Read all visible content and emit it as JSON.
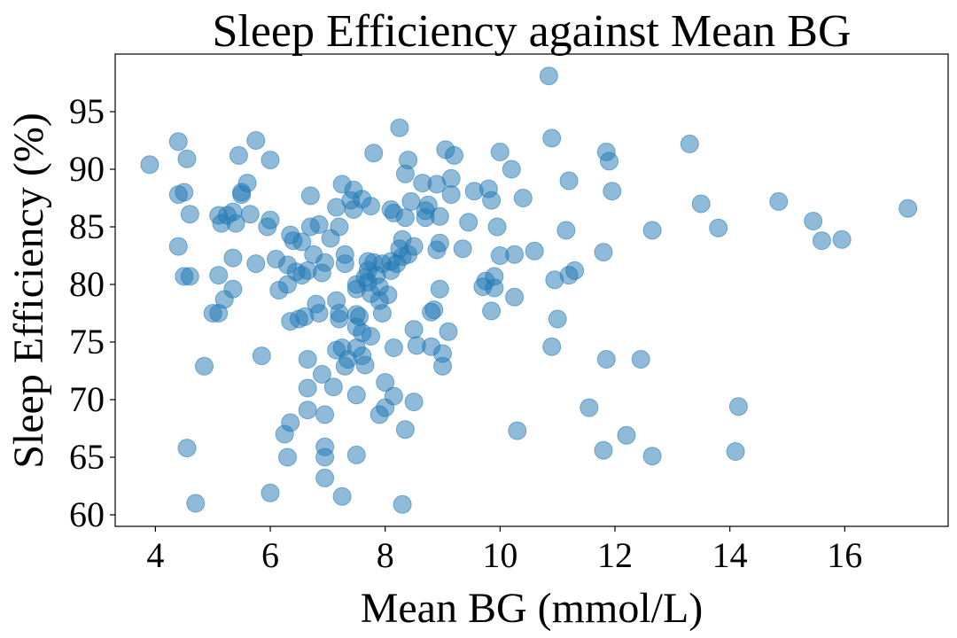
{
  "chart_data": {
    "type": "scatter",
    "title": "Sleep Efficiency against Mean BG",
    "xlabel": "Mean BG (mmol/L)",
    "ylabel": "Sleep Efficiency (%)",
    "xlim": [
      3.3,
      17.8
    ],
    "ylim": [
      59,
      100
    ],
    "xticks": [
      4,
      6,
      8,
      10,
      12,
      14,
      16
    ],
    "yticks": [
      60,
      65,
      70,
      75,
      80,
      85,
      90,
      95
    ],
    "grid": false,
    "legend": "none",
    "marker_color": "#1f77b4",
    "marker_alpha": 0.5,
    "series": [
      {
        "points": [
          [
            3.9,
            90.4
          ],
          [
            4.4,
            92.4
          ],
          [
            4.4,
            87.8
          ],
          [
            4.5,
            88.0
          ],
          [
            4.4,
            83.3
          ],
          [
            4.5,
            80.7
          ],
          [
            4.6,
            80.7
          ],
          [
            4.55,
            90.9
          ],
          [
            4.6,
            86.1
          ],
          [
            4.55,
            65.8
          ],
          [
            4.7,
            61.0
          ],
          [
            4.85,
            72.9
          ],
          [
            5.0,
            77.5
          ],
          [
            5.1,
            77.5
          ],
          [
            5.1,
            80.8
          ],
          [
            5.1,
            86.0
          ],
          [
            5.15,
            85.3
          ],
          [
            5.2,
            78.7
          ],
          [
            5.25,
            86.0
          ],
          [
            5.35,
            86.3
          ],
          [
            5.35,
            82.3
          ],
          [
            5.35,
            79.6
          ],
          [
            5.4,
            85.3
          ],
          [
            5.45,
            91.2
          ],
          [
            5.5,
            87.8
          ],
          [
            5.5,
            88.0
          ],
          [
            5.6,
            88.8
          ],
          [
            5.65,
            86.1
          ],
          [
            5.75,
            81.8
          ],
          [
            5.75,
            92.5
          ],
          [
            5.85,
            73.8
          ],
          [
            5.95,
            85.0
          ],
          [
            6.0,
            85.6
          ],
          [
            6.0,
            90.8
          ],
          [
            6.0,
            61.9
          ],
          [
            6.1,
            82.2
          ],
          [
            6.15,
            79.5
          ],
          [
            6.25,
            67.0
          ],
          [
            6.3,
            65.0
          ],
          [
            6.3,
            81.7
          ],
          [
            6.3,
            80.0
          ],
          [
            6.35,
            68.0
          ],
          [
            6.35,
            84.3
          ],
          [
            6.35,
            76.8
          ],
          [
            6.4,
            83.8
          ],
          [
            6.45,
            81.1
          ],
          [
            6.5,
            77.0
          ],
          [
            6.55,
            83.7
          ],
          [
            6.55,
            80.8
          ],
          [
            6.6,
            77.2
          ],
          [
            6.65,
            81.2
          ],
          [
            6.65,
            69.1
          ],
          [
            6.65,
            71.0
          ],
          [
            6.65,
            73.5
          ],
          [
            6.7,
            87.7
          ],
          [
            6.7,
            85.0
          ],
          [
            6.75,
            82.6
          ],
          [
            6.8,
            78.3
          ],
          [
            6.85,
            77.5
          ],
          [
            6.85,
            85.2
          ],
          [
            6.9,
            81.0
          ],
          [
            6.9,
            72.2
          ],
          [
            6.95,
            68.7
          ],
          [
            6.95,
            65.0
          ],
          [
            6.95,
            65.9
          ],
          [
            6.95,
            63.2
          ],
          [
            6.95,
            81.9
          ],
          [
            7.05,
            84.0
          ],
          [
            7.1,
            71.1
          ],
          [
            7.15,
            78.6
          ],
          [
            7.15,
            74.3
          ],
          [
            7.15,
            86.7
          ],
          [
            7.2,
            77.5
          ],
          [
            7.2,
            77.0
          ],
          [
            7.2,
            85.0
          ],
          [
            7.25,
            88.7
          ],
          [
            7.25,
            74.5
          ],
          [
            7.25,
            61.6
          ],
          [
            7.3,
            82.6
          ],
          [
            7.3,
            81.8
          ],
          [
            7.3,
            72.9
          ],
          [
            7.35,
            73.5
          ],
          [
            7.4,
            87.3
          ],
          [
            7.45,
            88.2
          ],
          [
            7.45,
            86.5
          ],
          [
            7.5,
            77.4
          ],
          [
            7.5,
            80.0
          ],
          [
            7.5,
            79.6
          ],
          [
            7.5,
            76.3
          ],
          [
            7.5,
            74.5
          ],
          [
            7.5,
            65.2
          ],
          [
            7.5,
            70.4
          ],
          [
            7.55,
            77.2
          ],
          [
            7.6,
            87.4
          ],
          [
            7.6,
            75.8
          ],
          [
            7.6,
            73.8
          ],
          [
            7.65,
            73.0
          ],
          [
            7.65,
            80.6
          ],
          [
            7.7,
            82.0
          ],
          [
            7.7,
            80.2
          ],
          [
            7.7,
            81.2
          ],
          [
            7.75,
            86.8
          ],
          [
            7.75,
            79.2
          ],
          [
            7.75,
            75.5
          ],
          [
            7.8,
            91.4
          ],
          [
            7.8,
            81.9
          ],
          [
            7.85,
            80.8
          ],
          [
            7.9,
            79.8
          ],
          [
            7.9,
            78.6
          ],
          [
            7.9,
            68.7
          ],
          [
            7.95,
            77.5
          ],
          [
            7.95,
            81.8
          ],
          [
            8.0,
            71.5
          ],
          [
            8.0,
            69.3
          ],
          [
            8.05,
            79.1
          ],
          [
            8.1,
            81.2
          ],
          [
            8.1,
            82.0
          ],
          [
            8.1,
            86.5
          ],
          [
            8.15,
            86.2
          ],
          [
            8.15,
            74.5
          ],
          [
            8.15,
            70.3
          ],
          [
            8.2,
            81.8
          ],
          [
            8.25,
            93.6
          ],
          [
            8.25,
            83.1
          ],
          [
            8.3,
            82.4
          ],
          [
            8.3,
            83.9
          ],
          [
            8.3,
            60.9
          ],
          [
            8.35,
            85.8
          ],
          [
            8.35,
            89.6
          ],
          [
            8.35,
            67.4
          ],
          [
            8.4,
            82.6
          ],
          [
            8.4,
            90.8
          ],
          [
            8.45,
            87.2
          ],
          [
            8.5,
            76.1
          ],
          [
            8.5,
            69.8
          ],
          [
            8.5,
            83.3
          ],
          [
            8.55,
            74.7
          ],
          [
            8.65,
            88.8
          ],
          [
            8.7,
            86.4
          ],
          [
            8.7,
            85.8
          ],
          [
            8.75,
            86.9
          ],
          [
            8.8,
            77.6
          ],
          [
            8.8,
            74.6
          ],
          [
            8.85,
            77.8
          ],
          [
            8.9,
            83.0
          ],
          [
            8.9,
            88.7
          ],
          [
            8.95,
            79.6
          ],
          [
            8.95,
            83.6
          ],
          [
            8.95,
            85.9
          ],
          [
            9.0,
            74.0
          ],
          [
            9.0,
            72.9
          ],
          [
            9.05,
            91.7
          ],
          [
            9.1,
            75.9
          ],
          [
            9.15,
            89.2
          ],
          [
            9.15,
            87.8
          ],
          [
            9.2,
            91.2
          ],
          [
            9.35,
            83.1
          ],
          [
            9.45,
            85.4
          ],
          [
            9.55,
            88.1
          ],
          [
            9.7,
            79.8
          ],
          [
            9.75,
            80.3
          ],
          [
            9.8,
            88.3
          ],
          [
            9.85,
            87.3
          ],
          [
            9.85,
            77.7
          ],
          [
            9.9,
            79.7
          ],
          [
            9.9,
            80.7
          ],
          [
            9.95,
            85.0
          ],
          [
            10.0,
            91.5
          ],
          [
            10.0,
            82.5
          ],
          [
            10.2,
            90.0
          ],
          [
            10.25,
            82.6
          ],
          [
            10.25,
            78.9
          ],
          [
            10.3,
            67.3
          ],
          [
            10.4,
            87.5
          ],
          [
            10.6,
            82.9
          ],
          [
            10.85,
            98.1
          ],
          [
            10.9,
            92.7
          ],
          [
            10.9,
            74.6
          ],
          [
            10.95,
            80.4
          ],
          [
            11.0,
            77.0
          ],
          [
            11.15,
            84.7
          ],
          [
            11.2,
            89.0
          ],
          [
            11.2,
            80.8
          ],
          [
            11.3,
            81.2
          ],
          [
            11.55,
            69.3
          ],
          [
            11.8,
            82.8
          ],
          [
            11.8,
            65.6
          ],
          [
            11.85,
            91.5
          ],
          [
            11.85,
            73.5
          ],
          [
            11.9,
            90.7
          ],
          [
            11.95,
            88.1
          ],
          [
            12.2,
            66.9
          ],
          [
            12.45,
            73.5
          ],
          [
            12.65,
            84.7
          ],
          [
            12.65,
            65.1
          ],
          [
            13.3,
            92.2
          ],
          [
            13.5,
            87.0
          ],
          [
            13.8,
            84.9
          ],
          [
            14.1,
            65.5
          ],
          [
            14.15,
            69.4
          ],
          [
            14.85,
            87.2
          ],
          [
            15.45,
            85.5
          ],
          [
            15.6,
            83.8
          ],
          [
            15.95,
            83.9
          ],
          [
            17.1,
            86.6
          ]
        ]
      }
    ]
  }
}
